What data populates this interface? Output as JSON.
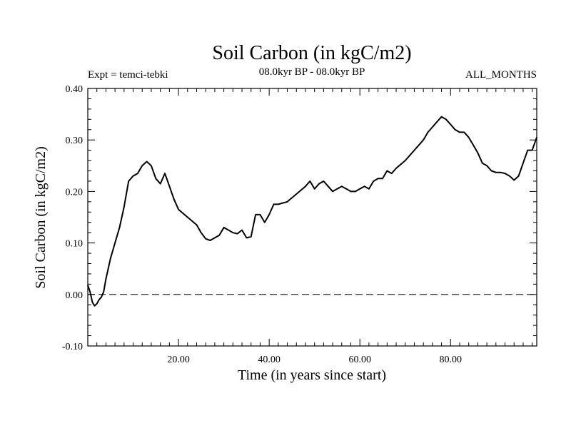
{
  "chart_data": {
    "type": "line",
    "title": "Soil Carbon (in kgC/m2)",
    "subtitle_left": "Expt = temci-tebki",
    "subtitle_center": "08.0kyr BP - 08.0kyr BP",
    "subtitle_right": "ALL_MONTHS",
    "xlabel": "Time (in years since start)",
    "ylabel": "Soil Carbon (in kgC/m2)",
    "xlim": [
      0,
      99
    ],
    "ylim": [
      -0.1,
      0.4
    ],
    "x_ticks": [
      20,
      40,
      60,
      80
    ],
    "x_tick_labels": [
      "20.00",
      "40.00",
      "60.00",
      "80.00"
    ],
    "y_ticks": [
      -0.1,
      0.0,
      0.1,
      0.2,
      0.3,
      0.4
    ],
    "y_tick_labels": [
      "-0.10",
      "0.00",
      "0.10",
      "0.20",
      "0.30",
      "0.40"
    ],
    "reference_line": {
      "y": 0.0,
      "style": "dashed"
    },
    "series": [
      {
        "name": "Soil Carbon",
        "x": [
          0,
          0.5,
          1,
          1.5,
          2,
          2.5,
          3,
          3.5,
          4,
          5,
          6,
          7,
          8,
          9,
          10,
          11,
          12,
          13,
          14,
          15,
          16,
          17,
          18,
          19,
          20,
          22,
          24,
          25,
          26,
          27,
          28,
          29,
          30,
          31,
          32,
          33,
          34,
          35,
          36,
          37,
          38,
          39,
          40,
          41,
          42,
          44,
          46,
          48,
          49,
          50,
          51,
          52,
          53,
          54,
          55,
          56,
          57,
          58,
          59,
          60,
          61,
          62,
          63,
          64,
          65,
          66,
          67,
          68,
          70,
          72,
          74,
          75,
          76,
          77,
          78,
          79,
          80,
          81,
          82,
          83,
          84,
          85,
          86,
          87,
          88,
          89,
          90,
          91,
          92,
          93,
          94,
          95,
          96,
          97,
          98,
          99
        ],
        "values": [
          0.018,
          0.005,
          -0.015,
          -0.022,
          -0.018,
          -0.01,
          -0.005,
          0.005,
          0.03,
          0.07,
          0.1,
          0.13,
          0.17,
          0.22,
          0.23,
          0.235,
          0.25,
          0.258,
          0.25,
          0.225,
          0.215,
          0.235,
          0.21,
          0.185,
          0.165,
          0.15,
          0.135,
          0.12,
          0.108,
          0.105,
          0.11,
          0.115,
          0.13,
          0.125,
          0.12,
          0.118,
          0.125,
          0.11,
          0.112,
          0.155,
          0.155,
          0.14,
          0.155,
          0.175,
          0.175,
          0.18,
          0.195,
          0.21,
          0.22,
          0.205,
          0.215,
          0.22,
          0.21,
          0.2,
          0.205,
          0.21,
          0.205,
          0.2,
          0.2,
          0.205,
          0.21,
          0.205,
          0.22,
          0.225,
          0.225,
          0.24,
          0.235,
          0.245,
          0.26,
          0.28,
          0.3,
          0.315,
          0.325,
          0.335,
          0.345,
          0.34,
          0.33,
          0.32,
          0.315,
          0.315,
          0.305,
          0.29,
          0.275,
          0.255,
          0.25,
          0.24,
          0.237,
          0.237,
          0.235,
          0.23,
          0.222,
          0.23,
          0.255,
          0.28,
          0.28,
          0.305
        ]
      }
    ]
  }
}
